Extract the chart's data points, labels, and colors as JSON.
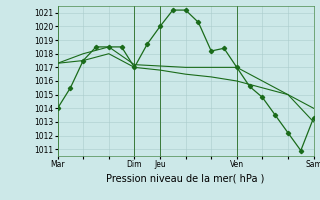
{
  "background_color": "#cce8e8",
  "grid_color": "#aacccc",
  "line_color": "#1a6b1a",
  "title": "Pression niveau de la mer( hPa )",
  "ylim": [
    1010.5,
    1021.5
  ],
  "yticks": [
    1011,
    1012,
    1013,
    1014,
    1015,
    1016,
    1017,
    1018,
    1019,
    1020,
    1021
  ],
  "xtick_labels": [
    "Mar",
    "",
    "",
    "Dim",
    "Jeu",
    "",
    "",
    "Ven",
    "",
    "",
    "Sam"
  ],
  "xtick_positions": [
    0,
    12,
    24,
    36,
    48,
    60,
    72,
    84,
    96,
    108,
    120
  ],
  "vlines": [
    0,
    36,
    48,
    84,
    120
  ],
  "series1_x": [
    0,
    6,
    12,
    18,
    24,
    30,
    36,
    42,
    48,
    54,
    60,
    66,
    72,
    78,
    84,
    90,
    96,
    102,
    108,
    114,
    120
  ],
  "series1_y": [
    1014.0,
    1015.5,
    1017.5,
    1018.5,
    1018.5,
    1018.5,
    1017.0,
    1018.7,
    1020.0,
    1021.2,
    1021.2,
    1020.3,
    1018.2,
    1018.4,
    1017.0,
    1015.6,
    1014.8,
    1013.5,
    1012.2,
    1010.9,
    1013.3
  ],
  "series2_x": [
    0,
    12,
    24,
    36,
    48,
    60,
    72,
    84,
    96,
    108,
    120
  ],
  "series2_y": [
    1017.3,
    1018.0,
    1018.5,
    1017.2,
    1017.1,
    1017.0,
    1017.0,
    1017.0,
    1016.0,
    1015.0,
    1013.0
  ],
  "series3_x": [
    0,
    12,
    24,
    36,
    48,
    60,
    72,
    84,
    96,
    108,
    120
  ],
  "series3_y": [
    1017.3,
    1017.5,
    1018.0,
    1017.0,
    1016.8,
    1016.5,
    1016.3,
    1016.0,
    1015.5,
    1015.0,
    1014.0
  ],
  "title_fontsize": 7,
  "tick_fontsize": 5.5
}
